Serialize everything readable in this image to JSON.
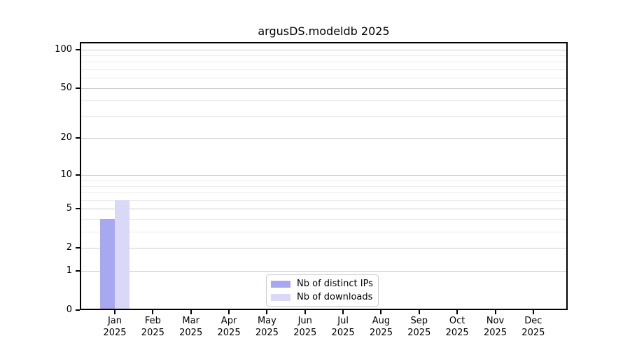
{
  "chart_data": {
    "type": "bar",
    "title": "argusDS.modeldb 2025",
    "categories": [
      "Jan",
      "Feb",
      "Mar",
      "Apr",
      "May",
      "Jun",
      "Jul",
      "Aug",
      "Sep",
      "Oct",
      "Nov",
      "Dec"
    ],
    "year_label": "2025",
    "series": [
      {
        "name": "Nb of distinct IPs",
        "color": "#a8a8f2",
        "values": [
          4,
          0,
          0,
          0,
          0,
          0,
          0,
          0,
          0,
          0,
          0,
          0
        ]
      },
      {
        "name": "Nb of downloads",
        "color": "#d9d9f7",
        "values": [
          6,
          0,
          0,
          0,
          0,
          0,
          0,
          0,
          0,
          0,
          0,
          0
        ]
      }
    ],
    "yscale": "log1p",
    "yticks": [
      0,
      1,
      2,
      5,
      10,
      20,
      50,
      100
    ],
    "yminor_gridlines": [
      3,
      4,
      6,
      7,
      8,
      9,
      30,
      40,
      60,
      70,
      80,
      90
    ],
    "ylim": [
      0,
      114
    ],
    "grid": "horizontal",
    "legend_position": "lower center",
    "colors": {
      "major_grid": "#cccccc",
      "minor_grid": "#ececec",
      "axis": "#000000",
      "text": "#000000",
      "background": "#ffffff"
    }
  }
}
